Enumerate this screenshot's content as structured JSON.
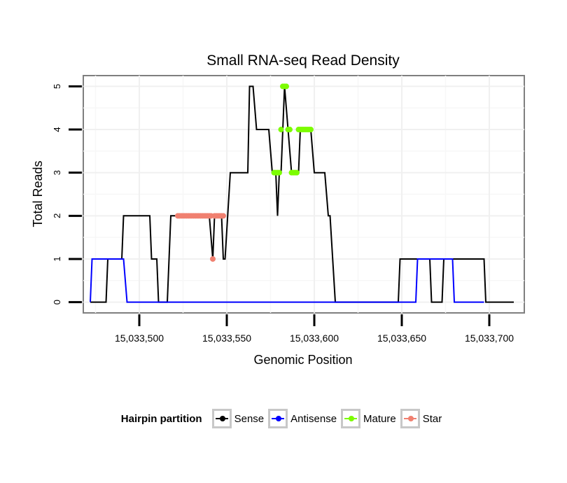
{
  "chart_data": {
    "type": "line",
    "title": "Small RNA-seq Read Density",
    "xlabel": "Genomic Position",
    "ylabel": "Total Reads",
    "xlim": [
      15033468,
      15033720
    ],
    "ylim": [
      -0.25,
      5.25
    ],
    "x_ticks": [
      15033500,
      15033550,
      15033600,
      15033650,
      15033700
    ],
    "x_tick_labels": [
      "15,033,500",
      "15,033,550",
      "15,033,600",
      "15,033,650",
      "15,033,700"
    ],
    "y_ticks": [
      0,
      1,
      2,
      3,
      4,
      5
    ],
    "y_tick_labels": [
      "0",
      "1",
      "2",
      "3",
      "4",
      "5"
    ],
    "grid": true,
    "legend_position": "bottom",
    "legend_title": "Hairpin partition",
    "series": [
      {
        "name": "Sense",
        "color": "#000000",
        "points": [
          [
            15033472,
            0
          ],
          [
            15033481,
            0
          ],
          [
            15033482,
            1
          ],
          [
            15033490,
            1
          ],
          [
            15033491,
            2
          ],
          [
            15033506,
            2
          ],
          [
            15033507,
            1
          ],
          [
            15033510,
            1
          ],
          [
            15033511,
            0
          ],
          [
            15033516,
            0
          ],
          [
            15033517,
            1
          ],
          [
            15033518,
            2
          ],
          [
            15033540,
            2
          ],
          [
            15033542,
            1
          ],
          [
            15033543,
            2
          ],
          [
            15033547,
            2
          ],
          [
            15033548,
            1
          ],
          [
            15033549,
            1
          ],
          [
            15033552,
            3
          ],
          [
            15033562,
            3
          ],
          [
            15033563,
            5
          ],
          [
            15033565,
            5
          ],
          [
            15033567,
            4
          ],
          [
            15033574,
            4
          ],
          [
            15033576,
            3
          ],
          [
            15033578,
            3
          ],
          [
            15033579,
            2
          ],
          [
            15033580,
            3
          ],
          [
            15033581,
            3
          ],
          [
            15033583,
            5
          ],
          [
            15033585,
            4
          ],
          [
            15033587,
            3
          ],
          [
            15033591,
            3
          ],
          [
            15033592,
            4
          ],
          [
            15033598,
            4
          ],
          [
            15033600,
            3
          ],
          [
            15033606,
            3
          ],
          [
            15033608,
            2
          ],
          [
            15033609,
            2
          ],
          [
            15033612,
            0
          ],
          [
            15033648,
            0
          ],
          [
            15033649,
            1
          ],
          [
            15033666,
            1
          ],
          [
            15033667,
            0
          ],
          [
            15033673,
            0
          ],
          [
            15033674,
            1
          ],
          [
            15033697,
            1
          ],
          [
            15033698,
            0
          ],
          [
            15033714,
            0
          ]
        ]
      },
      {
        "name": "Antisense",
        "color": "#0000ff",
        "points": [
          [
            15033472,
            0
          ],
          [
            15033473,
            1
          ],
          [
            15033491,
            1
          ],
          [
            15033493,
            0
          ],
          [
            15033658,
            0
          ],
          [
            15033659,
            1
          ],
          [
            15033679,
            1
          ],
          [
            15033680,
            0
          ],
          [
            15033697,
            0
          ]
        ]
      },
      {
        "name": "Mature",
        "color": "#7cfc00",
        "points": [
          [
            15033577,
            3
          ],
          [
            15033578,
            3
          ],
          [
            15033579,
            3
          ],
          [
            15033580,
            3
          ],
          [
            15033581,
            4
          ],
          [
            15033582,
            5
          ],
          [
            15033583,
            5
          ],
          [
            15033584,
            5
          ],
          [
            15033585,
            4
          ],
          [
            15033586,
            4
          ],
          [
            15033587,
            3
          ],
          [
            15033588,
            3
          ],
          [
            15033589,
            3
          ],
          [
            15033590,
            3
          ],
          [
            15033591,
            4
          ],
          [
            15033592,
            4
          ],
          [
            15033593,
            4
          ],
          [
            15033594,
            4
          ],
          [
            15033595,
            4
          ],
          [
            15033596,
            4
          ],
          [
            15033597,
            4
          ],
          [
            15033598,
            4
          ]
        ]
      },
      {
        "name": "Star",
        "color": "#f08070",
        "points": [
          [
            15033522,
            2
          ],
          [
            15033523,
            2
          ],
          [
            15033524,
            2
          ],
          [
            15033525,
            2
          ],
          [
            15033526,
            2
          ],
          [
            15033527,
            2
          ],
          [
            15033528,
            2
          ],
          [
            15033529,
            2
          ],
          [
            15033530,
            2
          ],
          [
            15033531,
            2
          ],
          [
            15033532,
            2
          ],
          [
            15033533,
            2
          ],
          [
            15033534,
            2
          ],
          [
            15033535,
            2
          ],
          [
            15033536,
            2
          ],
          [
            15033537,
            2
          ],
          [
            15033538,
            2
          ],
          [
            15033539,
            2
          ],
          [
            15033540,
            2
          ],
          [
            15033541,
            2
          ],
          [
            15033542,
            1
          ],
          [
            15033543,
            2
          ],
          [
            15033544,
            2
          ],
          [
            15033545,
            2
          ],
          [
            15033546,
            2
          ],
          [
            15033547,
            2
          ],
          [
            15033548,
            2
          ]
        ]
      }
    ]
  }
}
